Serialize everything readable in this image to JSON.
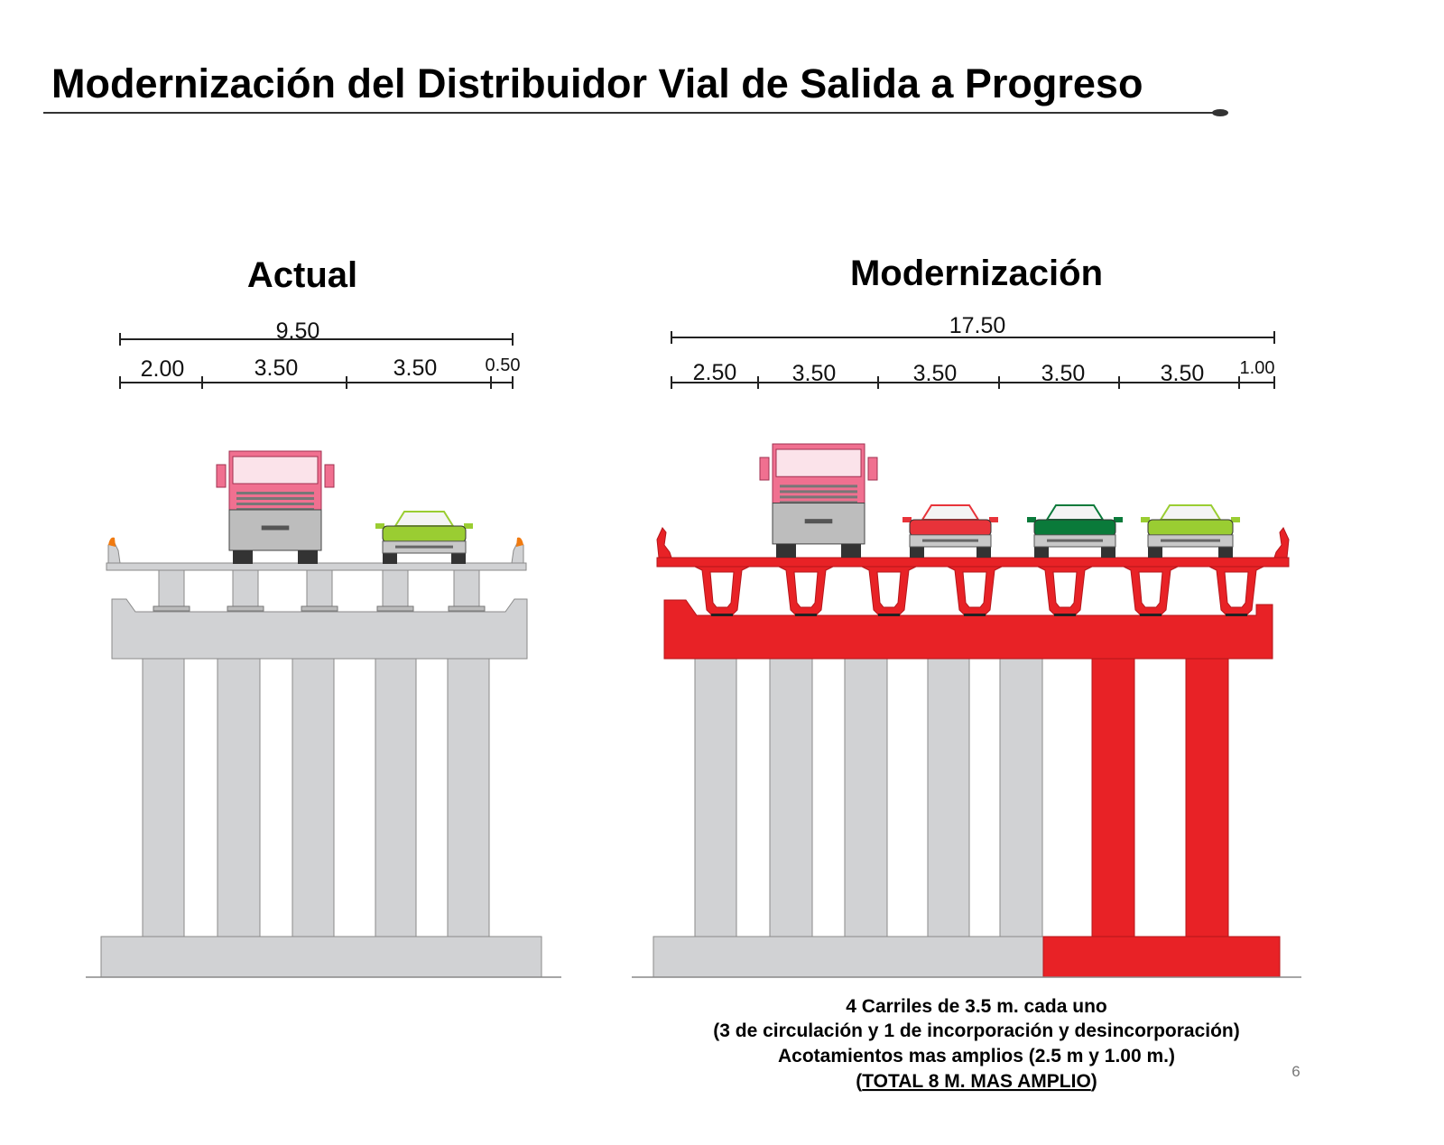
{
  "title": "Modernización del Distribuidor Vial de Salida a Progreso",
  "page_number": "6",
  "actual": {
    "heading": "Actual",
    "total_width": "9.50",
    "segments": [
      "2.00",
      "3.50",
      "3.50",
      "0.50"
    ]
  },
  "modernizacion": {
    "heading": "Modernización",
    "total_width": "17.50",
    "segments": [
      "2.50",
      "3.50",
      "3.50",
      "3.50",
      "3.50",
      "1.00"
    ]
  },
  "caption": {
    "line1": "4 Carriles de 3.5 m. cada uno",
    "line2": "(3 de circulación y 1 de incorporación y desincorporación)",
    "line3": "Acotamientos mas amplios (2.5 m y 1.00 m.)",
    "line4_open": "(",
    "line4_underlined": "TOTAL 8 M. MAS AMPLIO",
    "line4_close": ")"
  },
  "colors": {
    "existing_structure": "#d1d2d4",
    "new_structure": "#e82226",
    "truck": "#f07090",
    "car_red": "#e8333a",
    "car_green": "#0a7a3a",
    "car_lime": "#9acd32"
  }
}
